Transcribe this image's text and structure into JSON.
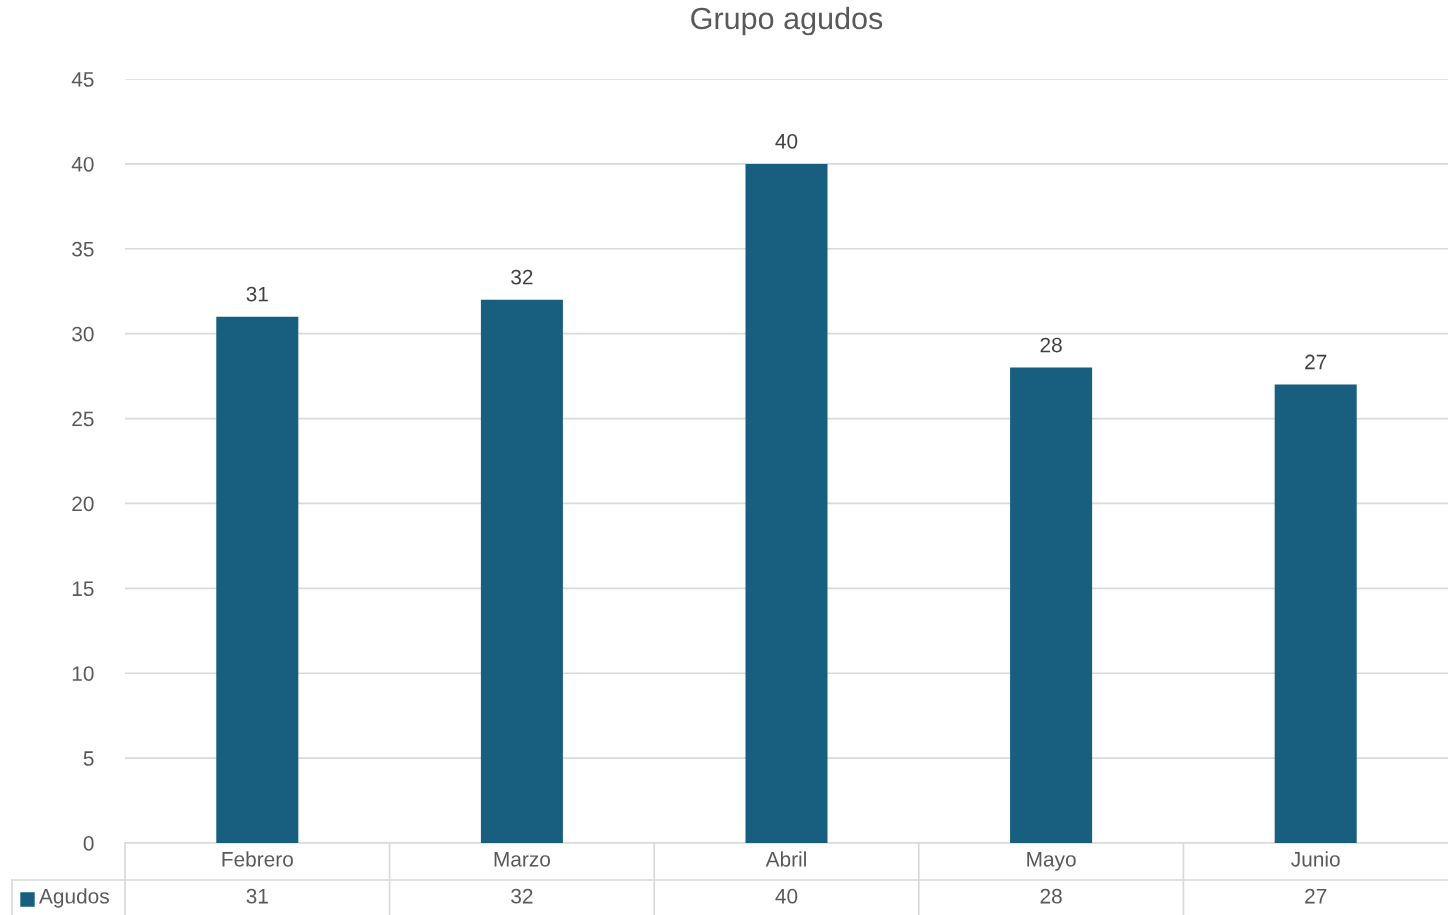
{
  "chart_data": {
    "type": "bar",
    "title": "Grupo agudos",
    "categories": [
      "Febrero",
      "Marzo",
      "Abril",
      "Mayo",
      "Junio"
    ],
    "series": [
      {
        "name": "Agudos",
        "color": "#175e7f",
        "values": [
          31,
          32,
          40,
          28,
          27
        ],
        "value_labels": [
          "31",
          "32",
          "40",
          "28",
          "27"
        ]
      }
    ],
    "ylim": [
      0,
      45
    ],
    "yticks": [
      0,
      5,
      10,
      15,
      20,
      25,
      30,
      35,
      40,
      45
    ],
    "grid": "y",
    "legend": "bottom",
    "annotations": [
      "31",
      "32",
      "40",
      "28",
      "27"
    ]
  }
}
